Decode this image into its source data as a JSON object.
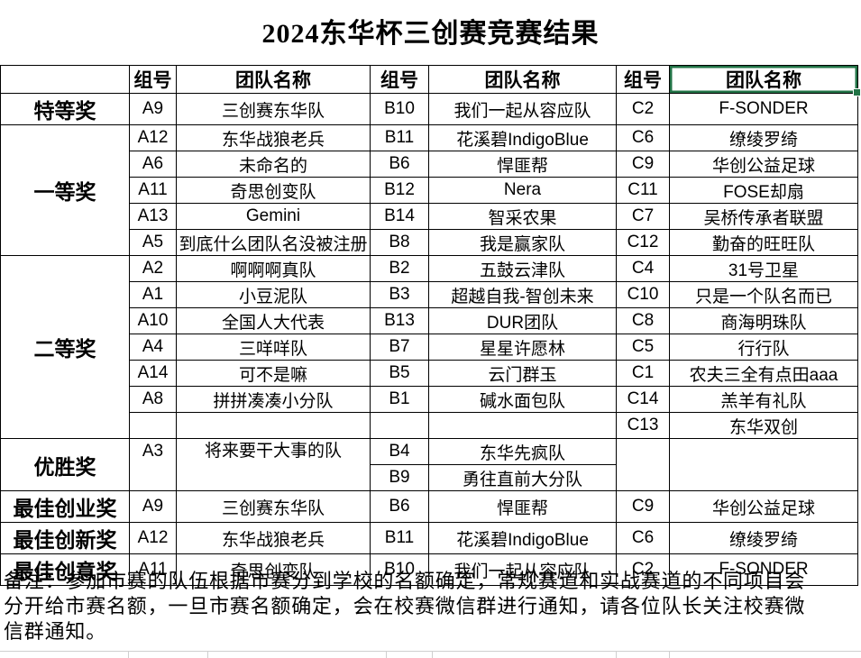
{
  "title": "2024东华杯三创赛竞赛结果",
  "accent_color": "#217346",
  "table": {
    "headers": [
      "",
      "组号",
      "团队名称",
      "组号",
      "团队名称",
      "组号",
      "团队名称"
    ],
    "selected_header_index": 6,
    "sections": [
      {
        "award": "特等奖",
        "rows": [
          [
            "A9",
            "三创赛东华队",
            "B10",
            "我们一起从容应队",
            "C2",
            "F-SONDER"
          ]
        ]
      },
      {
        "award": "一等奖",
        "rows": [
          [
            "A12",
            "东华战狼老兵",
            "B11",
            "花溪碧IndigoBlue",
            "C6",
            "缭绫罗绮"
          ],
          [
            "A6",
            "未命名的",
            "B6",
            "悍匪帮",
            "C9",
            "华创公益足球"
          ],
          [
            "A11",
            "奇思创变队",
            "B12",
            "Nera",
            "C11",
            "FOSE却扇"
          ],
          [
            "A13",
            "Gemini",
            "B14",
            "智采农果",
            "C7",
            "吴桥传承者联盟"
          ],
          [
            "A5",
            "到底什么团队名没被注册",
            "B8",
            "我是赢家队",
            "C12",
            "勤奋的旺旺队"
          ]
        ]
      },
      {
        "award": "二等奖",
        "rows": [
          [
            "A2",
            "啊啊啊真队",
            "B2",
            "五鼓云津队",
            "C4",
            "31号卫星"
          ],
          [
            "A1",
            "小豆泥队",
            "B3",
            "超越自我-智创未来",
            "C10",
            "只是一个队名而已"
          ],
          [
            "A10",
            "全国人大代表",
            "B13",
            "DUR团队",
            "C8",
            "商海明珠队"
          ],
          [
            "A4",
            "三咩咩队",
            "B7",
            "星星许愿林",
            "C5",
            "行行队"
          ],
          [
            "A14",
            "可不是嘛",
            "B5",
            "云门群玉",
            "C1",
            "农夫三全有点田aaa"
          ],
          [
            "A8",
            "拼拼凑凑小分队",
            "B1",
            "碱水面包队",
            "C14",
            "羔羊有礼队"
          ],
          [
            "",
            "",
            "",
            "",
            "C13",
            "东华双创"
          ]
        ]
      },
      {
        "award": "优胜奖",
        "merge_ac": true,
        "rows": [
          [
            "A3",
            "将来要干大事的队",
            "B4",
            "东华先疯队",
            "",
            ""
          ],
          [
            "",
            "",
            "B9",
            "勇往直前大分队",
            "",
            ""
          ]
        ]
      },
      {
        "award": "最佳创业奖",
        "rows": [
          [
            "A9",
            "三创赛东华队",
            "B6",
            "悍匪帮",
            "C9",
            "华创公益足球"
          ]
        ]
      },
      {
        "award": "最佳创新奖",
        "rows": [
          [
            "A12",
            "东华战狼老兵",
            "B11",
            "花溪碧IndigoBlue",
            "C6",
            "缭绫罗绮"
          ]
        ]
      },
      {
        "award": "最佳创意奖",
        "rows": [
          [
            "A11",
            "奇思创变队",
            "B10",
            "我们一起从容应队",
            "C2",
            "F-SONDER"
          ]
        ]
      }
    ]
  },
  "note": "备注：参加市赛的队伍根据市赛分到学校的名额确定，常规赛道和实战赛道的不同项目会分开给市赛名额，一旦市赛名额确定，会在校赛微信群进行通知，请各位队长关注校赛微信群通知。"
}
